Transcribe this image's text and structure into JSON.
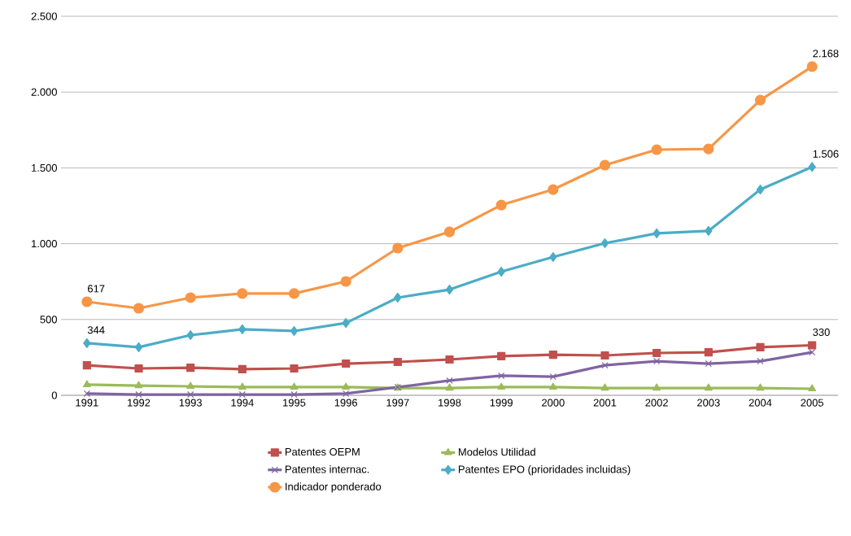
{
  "chart_data": {
    "type": "line",
    "categories": [
      "1991",
      "1992",
      "1993",
      "1994",
      "1995",
      "1996",
      "1997",
      "1998",
      "1999",
      "2000",
      "2001",
      "2002",
      "2003",
      "2004",
      "2005"
    ],
    "series": [
      {
        "name": "Patentes OEPM",
        "color": "#c0504d",
        "marker": "square",
        "values": [
          198,
          177,
          182,
          172,
          177,
          209,
          220,
          236,
          258,
          268,
          263,
          279,
          284,
          317,
          330
        ],
        "value_labels": [
          null,
          null,
          null,
          null,
          null,
          null,
          null,
          null,
          null,
          null,
          null,
          null,
          null,
          null,
          "330"
        ]
      },
      {
        "name": "Modelos Utilidad",
        "color": "#9bbb59",
        "marker": "triangle",
        "values": [
          70,
          64,
          59,
          54,
          54,
          54,
          48,
          48,
          54,
          54,
          48,
          48,
          48,
          48,
          43
        ]
      },
      {
        "name": "Patentes internac.",
        "color": "#8064a2",
        "marker": "cross",
        "values": [
          11,
          5,
          5,
          5,
          5,
          11,
          54,
          97,
          129,
          123,
          198,
          225,
          209,
          225,
          284
        ]
      },
      {
        "name": "Patentes EPO (prioridades incluidas)",
        "color": "#4bacc6",
        "marker": "diamond",
        "values": [
          344,
          317,
          397,
          435,
          424,
          477,
          644,
          697,
          815,
          912,
          1003,
          1068,
          1084,
          1357,
          1506
        ],
        "value_labels": [
          "344",
          null,
          null,
          null,
          null,
          null,
          null,
          null,
          null,
          null,
          null,
          null,
          null,
          null,
          "1.506"
        ]
      },
      {
        "name": "Indicador ponderado",
        "color": "#f79646",
        "marker": "circle",
        "values": [
          617,
          574,
          644,
          671,
          671,
          751,
          971,
          1078,
          1255,
          1357,
          1518,
          1620,
          1625,
          1947,
          2168
        ],
        "value_labels": [
          "617",
          null,
          null,
          null,
          null,
          null,
          null,
          null,
          null,
          null,
          null,
          null,
          null,
          null,
          "2.168"
        ]
      }
    ],
    "ylim": [
      0,
      2500
    ],
    "yticks": [
      0,
      500,
      {
        "value": 1000,
        "label": "1.000"
      },
      {
        "value": 1500,
        "label": "1.500"
      },
      {
        "value": 2000,
        "label": "2.000"
      },
      {
        "value": 2500,
        "label": "2.500"
      }
    ],
    "grid": "y",
    "legend": "bottom"
  }
}
